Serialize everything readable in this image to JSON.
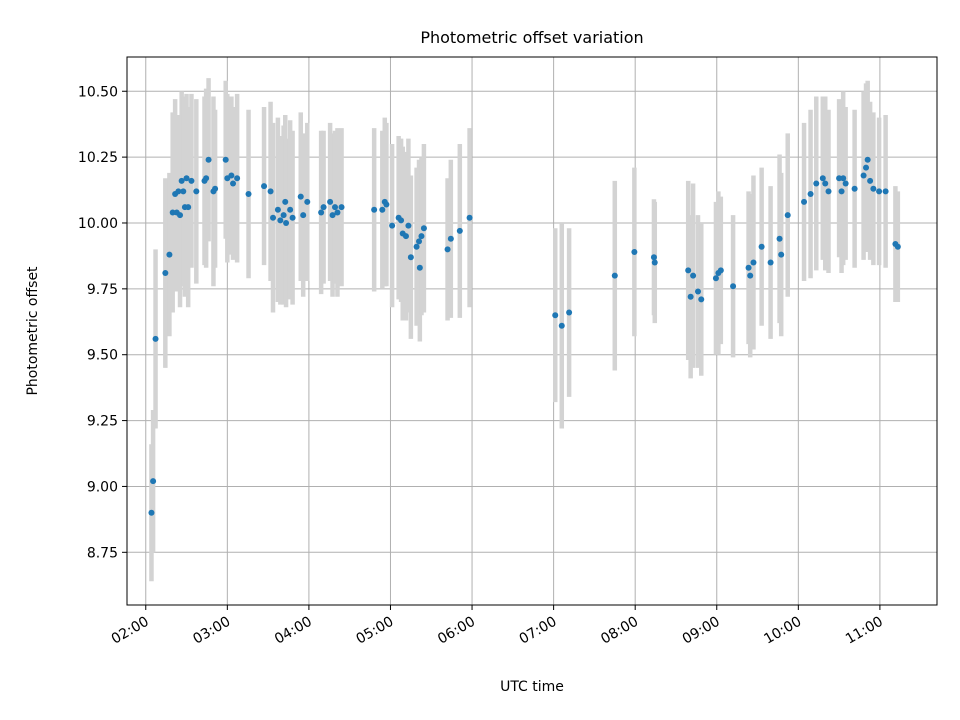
{
  "chart_data": {
    "type": "scatter",
    "title": "Photometric offset variation",
    "xlabel": "UTC time",
    "ylabel": "Photometric offset",
    "x_unit": "UTC hour (decimal hours)",
    "xlim": [
      1.77,
      11.7
    ],
    "ylim": [
      8.55,
      10.63
    ],
    "x_ticks": [
      2,
      3,
      4,
      5,
      6,
      7,
      8,
      9,
      10,
      11
    ],
    "x_tick_labels": [
      "02:00",
      "03:00",
      "04:00",
      "05:00",
      "06:00",
      "07:00",
      "08:00",
      "09:00",
      "10:00",
      "11:00"
    ],
    "y_ticks": [
      8.75,
      9.0,
      9.25,
      9.5,
      9.75,
      10.0,
      10.25,
      10.5
    ],
    "y_tick_labels": [
      "8.75",
      "9.00",
      "9.25",
      "9.50",
      "9.75",
      "10.00",
      "10.25",
      "10.50"
    ],
    "grid": true,
    "colors": {
      "point": "#1f77b4",
      "errorbar": "#d3d3d3",
      "grid": "#b0b0b0"
    },
    "points": [
      [
        2.07,
        8.9,
        0.26
      ],
      [
        2.09,
        9.02,
        0.27
      ],
      [
        2.12,
        9.56,
        0.34
      ],
      [
        2.24,
        9.81,
        0.36
      ],
      [
        2.29,
        9.88,
        0.31
      ],
      [
        2.33,
        10.04,
        0.38
      ],
      [
        2.36,
        10.11,
        0.36
      ],
      [
        2.38,
        10.04,
        0.3
      ],
      [
        2.4,
        10.12,
        0.29
      ],
      [
        2.42,
        10.03,
        0.35
      ],
      [
        2.44,
        10.16,
        0.34
      ],
      [
        2.46,
        10.12,
        0.36
      ],
      [
        2.48,
        10.06,
        0.34
      ],
      [
        2.5,
        10.17,
        0.32
      ],
      [
        2.52,
        10.06,
        0.38
      ],
      [
        2.56,
        10.16,
        0.33
      ],
      [
        2.62,
        10.12,
        0.35
      ],
      [
        2.72,
        10.16,
        0.32
      ],
      [
        2.74,
        10.17,
        0.34
      ],
      [
        2.77,
        10.24,
        0.31
      ],
      [
        2.83,
        10.12,
        0.36
      ],
      [
        2.85,
        10.13,
        0.3
      ],
      [
        2.98,
        10.24,
        0.3
      ],
      [
        3.0,
        10.17,
        0.32
      ],
      [
        3.05,
        10.18,
        0.3
      ],
      [
        3.07,
        10.15,
        0.29
      ],
      [
        3.12,
        10.17,
        0.32
      ],
      [
        3.26,
        10.11,
        0.32
      ],
      [
        3.45,
        10.14,
        0.3
      ],
      [
        3.53,
        10.12,
        0.34
      ],
      [
        3.56,
        10.02,
        0.36
      ],
      [
        3.62,
        10.05,
        0.35
      ],
      [
        3.65,
        10.01,
        0.32
      ],
      [
        3.69,
        10.03,
        0.34
      ],
      [
        3.71,
        10.08,
        0.33
      ],
      [
        3.72,
        10.0,
        0.32
      ],
      [
        3.77,
        10.05,
        0.34
      ],
      [
        3.8,
        10.02,
        0.33
      ],
      [
        3.9,
        10.1,
        0.32
      ],
      [
        3.93,
        10.03,
        0.31
      ],
      [
        3.98,
        10.08,
        0.3
      ],
      [
        4.15,
        10.04,
        0.31
      ],
      [
        4.18,
        10.06,
        0.29
      ],
      [
        4.26,
        10.08,
        0.3
      ],
      [
        4.29,
        10.03,
        0.31
      ],
      [
        4.32,
        10.06,
        0.29
      ],
      [
        4.35,
        10.04,
        0.32
      ],
      [
        4.4,
        10.06,
        0.3
      ],
      [
        4.8,
        10.05,
        0.31
      ],
      [
        4.9,
        10.05,
        0.3
      ],
      [
        4.93,
        10.08,
        0.32
      ],
      [
        4.95,
        10.07,
        0.31
      ],
      [
        5.02,
        9.99,
        0.31
      ],
      [
        5.1,
        10.02,
        0.31
      ],
      [
        5.13,
        10.01,
        0.31
      ],
      [
        5.15,
        9.96,
        0.33
      ],
      [
        5.19,
        9.95,
        0.32
      ],
      [
        5.22,
        9.99,
        0.33
      ],
      [
        5.25,
        9.87,
        0.31
      ],
      [
        5.32,
        9.91,
        0.3
      ],
      [
        5.35,
        9.93,
        0.31
      ],
      [
        5.36,
        9.83,
        0.28
      ],
      [
        5.38,
        9.95,
        0.3
      ],
      [
        5.41,
        9.98,
        0.32
      ],
      [
        5.7,
        9.9,
        0.27
      ],
      [
        5.74,
        9.94,
        0.3
      ],
      [
        5.85,
        9.97,
        0.33
      ],
      [
        5.97,
        10.02,
        0.34
      ],
      [
        7.02,
        9.65,
        0.33
      ],
      [
        7.1,
        9.61,
        0.39
      ],
      [
        7.19,
        9.66,
        0.32
      ],
      [
        7.75,
        9.8,
        0.36
      ],
      [
        7.99,
        9.89,
        0.32
      ],
      [
        8.23,
        9.87,
        0.22
      ],
      [
        8.24,
        9.85,
        0.23
      ],
      [
        8.65,
        9.82,
        0.34
      ],
      [
        8.68,
        9.72,
        0.31
      ],
      [
        8.71,
        9.8,
        0.35
      ],
      [
        8.77,
        9.74,
        0.29
      ],
      [
        8.81,
        9.71,
        0.29
      ],
      [
        8.99,
        9.79,
        0.29
      ],
      [
        9.02,
        9.81,
        0.31
      ],
      [
        9.05,
        9.82,
        0.28
      ],
      [
        9.2,
        9.76,
        0.27
      ],
      [
        9.39,
        9.83,
        0.29
      ],
      [
        9.41,
        9.8,
        0.31
      ],
      [
        9.45,
        9.85,
        0.33
      ],
      [
        9.55,
        9.91,
        0.3
      ],
      [
        9.66,
        9.85,
        0.29
      ],
      [
        9.77,
        9.94,
        0.32
      ],
      [
        9.79,
        9.88,
        0.31
      ],
      [
        9.87,
        10.03,
        0.31
      ],
      [
        10.07,
        10.08,
        0.3
      ],
      [
        10.15,
        10.11,
        0.32
      ],
      [
        10.22,
        10.15,
        0.33
      ],
      [
        10.3,
        10.17,
        0.31
      ],
      [
        10.33,
        10.15,
        0.33
      ],
      [
        10.37,
        10.12,
        0.31
      ],
      [
        10.5,
        10.17,
        0.3
      ],
      [
        10.53,
        10.12,
        0.31
      ],
      [
        10.55,
        10.17,
        0.33
      ],
      [
        10.58,
        10.15,
        0.29
      ],
      [
        10.69,
        10.13,
        0.3
      ],
      [
        10.8,
        10.18,
        0.32
      ],
      [
        10.83,
        10.21,
        0.32
      ],
      [
        10.85,
        10.24,
        0.3
      ],
      [
        10.88,
        10.16,
        0.3
      ],
      [
        10.92,
        10.13,
        0.29
      ],
      [
        10.99,
        10.12,
        0.28
      ],
      [
        11.07,
        10.12,
        0.29
      ],
      [
        11.19,
        9.92,
        0.22
      ],
      [
        11.22,
        9.91,
        0.21
      ]
    ],
    "points_format": [
      "utc_hour",
      "offset",
      "error"
    ]
  }
}
